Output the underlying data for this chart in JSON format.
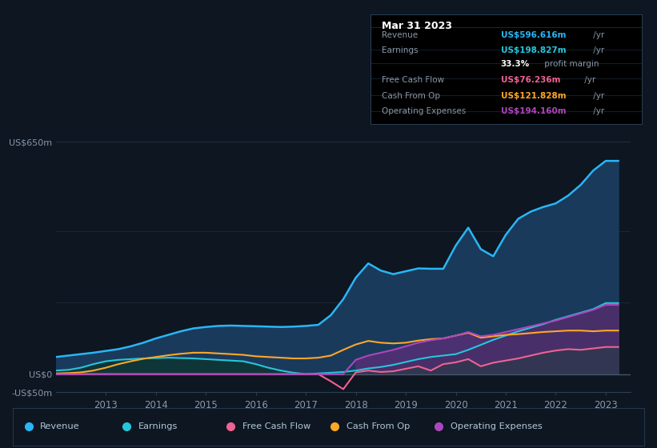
{
  "bg_color": "#0e1621",
  "plot_bg_color": "#0e1621",
  "chart_area_color": "#111d2e",
  "grid_color": "#1e2d3d",
  "color_revenue": "#29b6f6",
  "color_earnings": "#26c6da",
  "color_fcf": "#f06292",
  "color_cashop": "#ffa726",
  "color_opex": "#ab47bc",
  "fill_revenue": "#1a3a5c",
  "fill_earnings": "#0d3535",
  "fill_opex_color": "#5c2d7a",
  "fill_fcf_color": "#2a3a4a",
  "ylim": [
    -50,
    700
  ],
  "xlim_start": 2012.0,
  "xlim_end": 2023.5,
  "xtick_years": [
    2013,
    2014,
    2015,
    2016,
    2017,
    2018,
    2019,
    2020,
    2021,
    2022,
    2023
  ],
  "ytick_vals": [
    -50,
    0,
    650
  ],
  "ytick_labels": [
    "-US$50m",
    "US$0",
    "US$650m"
  ],
  "legend_labels": [
    "Revenue",
    "Earnings",
    "Free Cash Flow",
    "Cash From Op",
    "Operating Expenses"
  ],
  "legend_colors": [
    "#29b6f6",
    "#26c6da",
    "#f06292",
    "#ffa726",
    "#ab47bc"
  ],
  "tooltip_title": "Mar 31 2023",
  "tooltip_rows": [
    {
      "label": "Revenue",
      "value": "US$596.616m",
      "suffix": " /yr",
      "vcolor": "#29b6f6",
      "extra": null
    },
    {
      "label": "Earnings",
      "value": "US$198.827m",
      "suffix": " /yr",
      "vcolor": "#26c6da",
      "extra": "33.3% profit margin"
    },
    {
      "label": "Free Cash Flow",
      "value": "US$76.236m",
      "suffix": " /yr",
      "vcolor": "#f06292",
      "extra": null
    },
    {
      "label": "Cash From Op",
      "value": "US$121.828m",
      "suffix": " /yr",
      "vcolor": "#ffa726",
      "extra": null
    },
    {
      "label": "Operating Expenses",
      "value": "US$194.160m",
      "suffix": " /yr",
      "vcolor": "#ab47bc",
      "extra": null
    }
  ],
  "x_data": [
    2012.0,
    2012.25,
    2012.5,
    2012.75,
    2013.0,
    2013.25,
    2013.5,
    2013.75,
    2014.0,
    2014.25,
    2014.5,
    2014.75,
    2015.0,
    2015.25,
    2015.5,
    2015.75,
    2016.0,
    2016.25,
    2016.5,
    2016.75,
    2017.0,
    2017.25,
    2017.5,
    2017.75,
    2018.0,
    2018.25,
    2018.5,
    2018.75,
    2019.0,
    2019.25,
    2019.5,
    2019.75,
    2020.0,
    2020.25,
    2020.5,
    2020.75,
    2021.0,
    2021.25,
    2021.5,
    2021.75,
    2022.0,
    2022.25,
    2022.5,
    2022.75,
    2023.0,
    2023.25
  ],
  "revenue": [
    48,
    52,
    56,
    60,
    65,
    70,
    78,
    88,
    100,
    110,
    120,
    128,
    132,
    135,
    136,
    135,
    134,
    133,
    132,
    133,
    135,
    138,
    165,
    210,
    270,
    310,
    290,
    280,
    288,
    296,
    295,
    295,
    360,
    410,
    350,
    330,
    390,
    435,
    455,
    468,
    478,
    500,
    530,
    570,
    597,
    597
  ],
  "earnings": [
    10,
    12,
    18,
    28,
    36,
    40,
    42,
    44,
    45,
    46,
    45,
    44,
    42,
    40,
    38,
    36,
    28,
    18,
    10,
    4,
    0,
    2,
    4,
    6,
    10,
    16,
    20,
    26,
    34,
    42,
    48,
    52,
    56,
    68,
    82,
    96,
    108,
    120,
    130,
    140,
    152,
    162,
    172,
    182,
    199,
    199
  ],
  "free_cf": [
    0,
    0,
    0,
    0,
    0,
    0,
    0,
    0,
    0,
    0,
    0,
    0,
    0,
    0,
    0,
    0,
    0,
    0,
    0,
    0,
    0,
    0,
    -20,
    -42,
    5,
    10,
    6,
    8,
    15,
    22,
    10,
    28,
    33,
    42,
    22,
    32,
    38,
    44,
    52,
    60,
    66,
    70,
    68,
    72,
    76,
    76
  ],
  "cash_op": [
    2,
    3,
    5,
    10,
    18,
    28,
    36,
    43,
    48,
    53,
    57,
    60,
    60,
    58,
    56,
    54,
    50,
    48,
    46,
    44,
    44,
    46,
    52,
    68,
    83,
    93,
    88,
    86,
    88,
    94,
    98,
    100,
    108,
    116,
    102,
    106,
    110,
    112,
    115,
    118,
    120,
    122,
    122,
    120,
    122,
    122
  ],
  "op_exp": [
    0,
    0,
    0,
    0,
    0,
    0,
    0,
    0,
    0,
    0,
    0,
    0,
    0,
    0,
    0,
    0,
    0,
    0,
    0,
    0,
    0,
    0,
    0,
    0,
    40,
    52,
    60,
    68,
    78,
    88,
    95,
    100,
    108,
    118,
    106,
    110,
    118,
    126,
    134,
    142,
    150,
    160,
    170,
    180,
    194,
    194
  ]
}
